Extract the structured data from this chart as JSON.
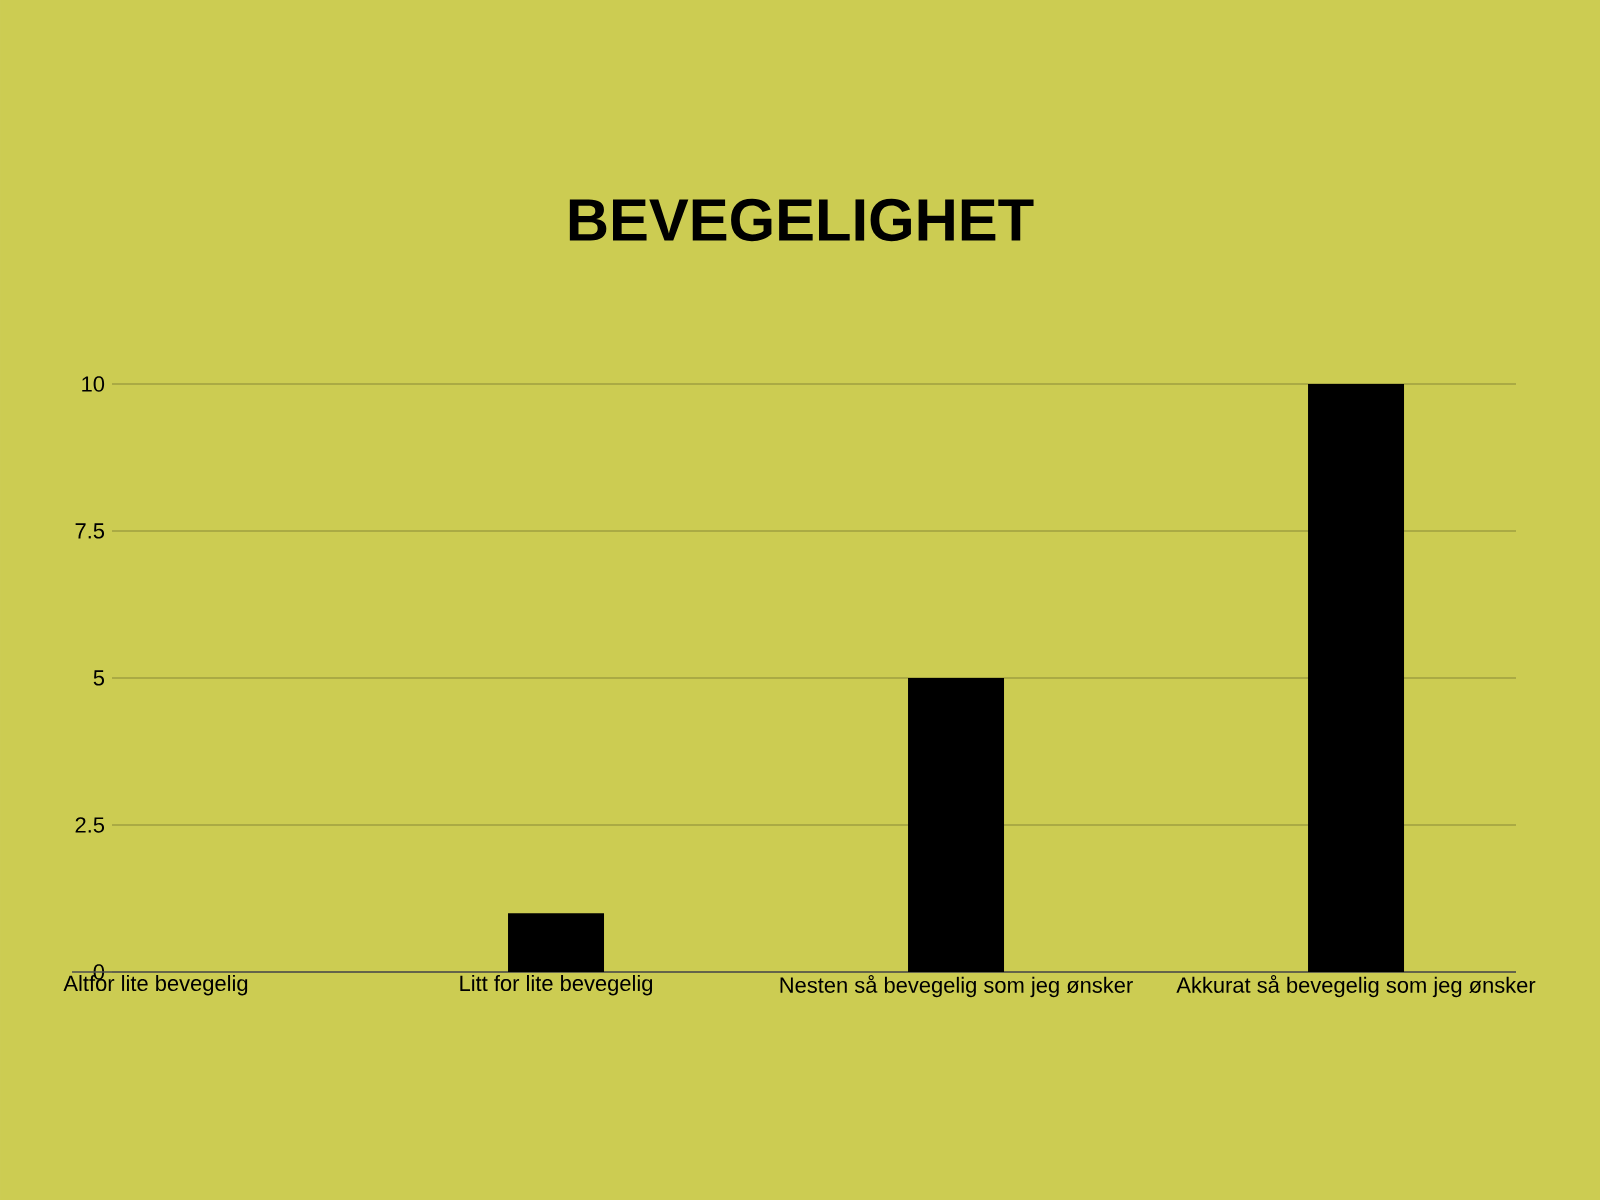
{
  "chart_data": {
    "type": "bar",
    "title": "BEVEGELIGHET",
    "categories": [
      "Altfor lite bevegelig",
      "Litt for lite bevegelig",
      "Nesten så bevegelig som jeg ønsker",
      "Akkurat så bevegelig som jeg ønsker"
    ],
    "values": [
      0,
      1,
      5,
      10
    ],
    "color": "#000000",
    "ylim": [
      0,
      10
    ],
    "yticks": [
      0,
      2.5,
      5,
      7.5,
      10
    ],
    "grid": "y"
  }
}
